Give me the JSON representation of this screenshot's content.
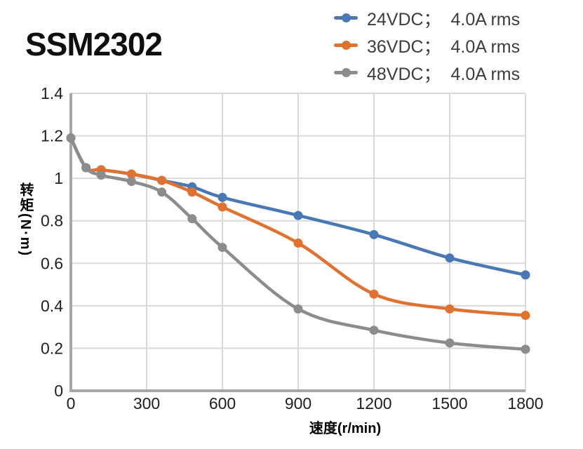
{
  "header": {
    "title": "SSM2302"
  },
  "legend": {
    "items": [
      {
        "id": "24vdc",
        "label": "24VDC；  4.0A rms",
        "color": "#4979b4"
      },
      {
        "id": "36vdc",
        "label": "36VDC；  4.0A rms",
        "color": "#e1712e"
      },
      {
        "id": "48vdc",
        "label": "48VDC；  4.0A rms",
        "color": "#8c8c8c"
      }
    ]
  },
  "chart_data": {
    "type": "line",
    "title": "SSM2302",
    "xlabel": "速度(r/min)",
    "ylabel": "转矩(N·m)",
    "x": [
      0,
      60,
      120,
      240,
      360,
      480,
      600,
      900,
      1200,
      1500,
      1800
    ],
    "series": [
      {
        "id": "24vdc",
        "name": "24VDC；4.0A rms",
        "color": "#4979b4",
        "values": [
          1.19,
          1.05,
          1.04,
          1.02,
          0.99,
          0.96,
          0.91,
          0.825,
          0.735,
          0.625,
          0.545
        ]
      },
      {
        "id": "36vdc",
        "name": "36VDC；4.0A rms",
        "color": "#e1712e",
        "values": [
          1.19,
          1.05,
          1.04,
          1.02,
          0.99,
          0.935,
          0.865,
          0.695,
          0.455,
          0.385,
          0.355
        ]
      },
      {
        "id": "48vdc",
        "name": "48VDC；4.0A rms",
        "color": "#8c8c8c",
        "values": [
          1.19,
          1.05,
          1.015,
          0.985,
          0.935,
          0.81,
          0.675,
          0.385,
          0.285,
          0.225,
          0.195
        ]
      }
    ],
    "xticks": [
      0,
      300,
      600,
      900,
      1200,
      1500,
      1800
    ],
    "yticks": [
      0,
      0.2,
      0.4,
      0.6,
      0.8,
      1,
      1.2,
      1.4
    ],
    "xlim": [
      0,
      1800
    ],
    "ylim": [
      0,
      1.4
    ],
    "grid": true,
    "legend_position": "top-right",
    "colors": {
      "grid": "#d9d9d9",
      "axis": "#a7a7a7",
      "tick_text": "#1f1f1f",
      "axis_title_text": "#000000",
      "legend_text": "#3d3d3d",
      "title_text": "#0f0f0f"
    }
  }
}
